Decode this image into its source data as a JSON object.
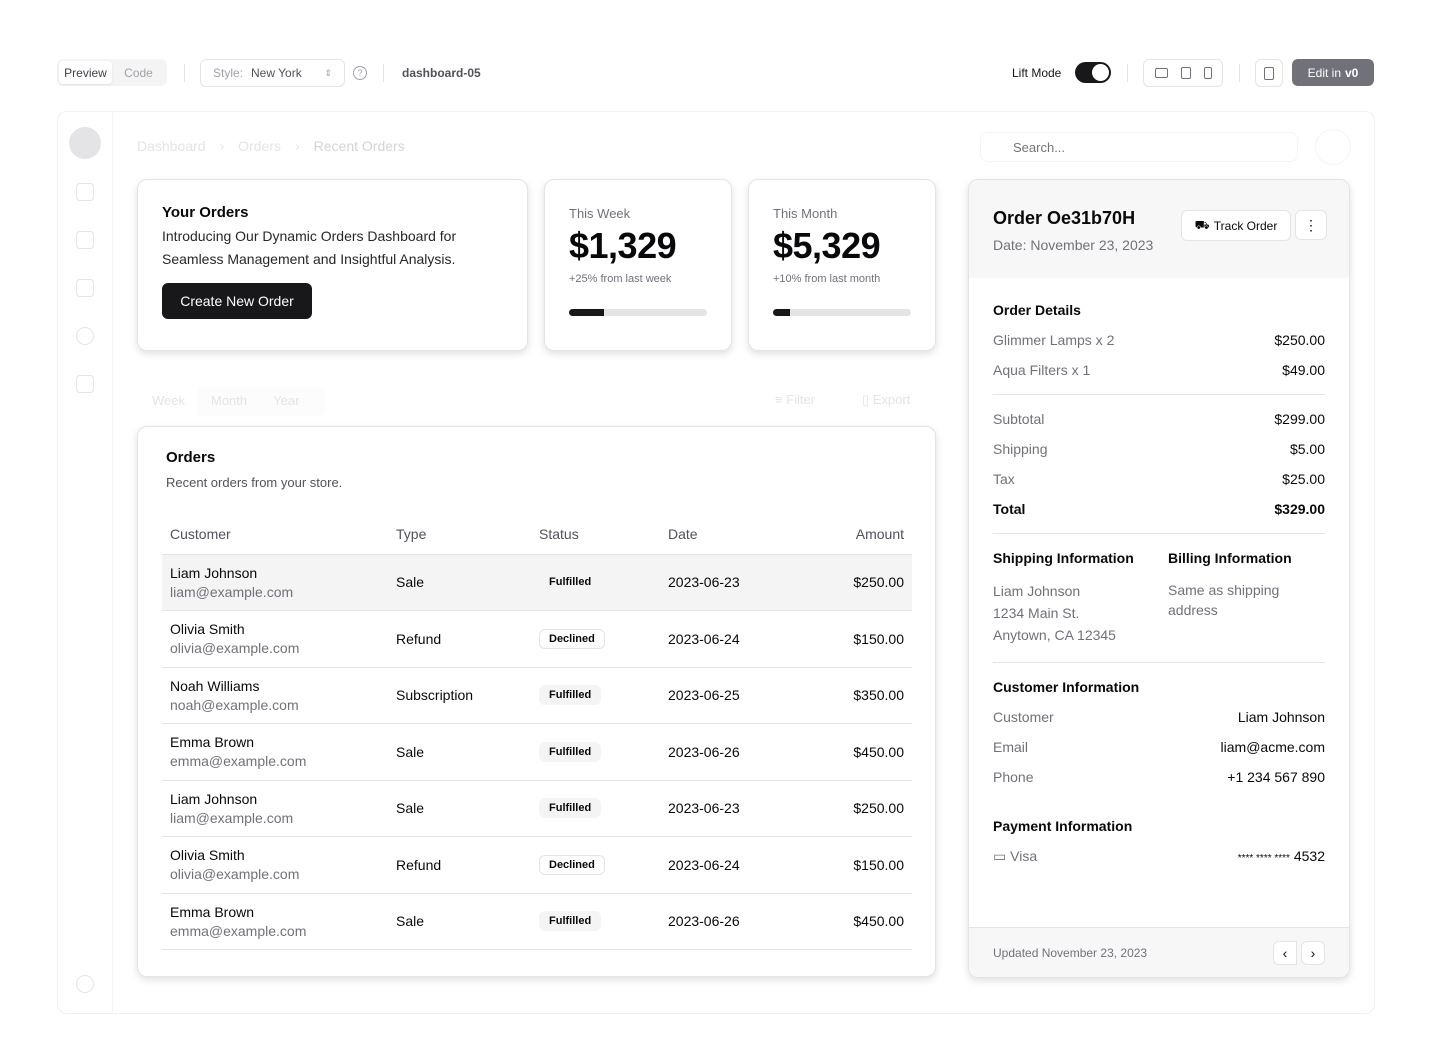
{
  "topbar": {
    "tabs": [
      "Preview",
      "Code"
    ],
    "style_label": "Style:",
    "style_value": "New York",
    "slug": "dashboard-05",
    "lift_mode": "Lift Mode",
    "lift_on": true,
    "edit_label": "Edit in",
    "edit_brand": "v0"
  },
  "breadcrumb": [
    "Dashboard",
    "Orders",
    "Recent Orders"
  ],
  "search": {
    "placeholder": "Search..."
  },
  "hero": {
    "title": "Your Orders",
    "desc": "Introducing Our Dynamic Orders Dashboard for Seamless Management and Insightful Analysis.",
    "button": "Create New Order"
  },
  "stats": [
    {
      "label": "This Week",
      "value": "$1,329",
      "change": "+25% from last week",
      "progress": 25
    },
    {
      "label": "This Month",
      "value": "$5,329",
      "change": "+10% from last month",
      "progress": 12
    }
  ],
  "filters": {
    "tabs": [
      "Week",
      "Month",
      "Year"
    ],
    "filter": "Filter",
    "export": "Export"
  },
  "orders": {
    "title": "Orders",
    "subtitle": "Recent orders from your store.",
    "columns": [
      "Customer",
      "Type",
      "Status",
      "Date",
      "Amount"
    ],
    "rows": [
      {
        "name": "Liam Johnson",
        "email": "liam@example.com",
        "type": "Sale",
        "status": "Fulfilled",
        "date": "2023-06-23",
        "amount": "$250.00"
      },
      {
        "name": "Olivia Smith",
        "email": "olivia@example.com",
        "type": "Refund",
        "status": "Declined",
        "date": "2023-06-24",
        "amount": "$150.00"
      },
      {
        "name": "Noah Williams",
        "email": "noah@example.com",
        "type": "Subscription",
        "status": "Fulfilled",
        "date": "2023-06-25",
        "amount": "$350.00"
      },
      {
        "name": "Emma Brown",
        "email": "emma@example.com",
        "type": "Sale",
        "status": "Fulfilled",
        "date": "2023-06-26",
        "amount": "$450.00"
      },
      {
        "name": "Liam Johnson",
        "email": "liam@example.com",
        "type": "Sale",
        "status": "Fulfilled",
        "date": "2023-06-23",
        "amount": "$250.00"
      },
      {
        "name": "Olivia Smith",
        "email": "olivia@example.com",
        "type": "Refund",
        "status": "Declined",
        "date": "2023-06-24",
        "amount": "$150.00"
      },
      {
        "name": "Emma Brown",
        "email": "emma@example.com",
        "type": "Sale",
        "status": "Fulfilled",
        "date": "2023-06-26",
        "amount": "$450.00"
      }
    ]
  },
  "detail": {
    "title": "Order Oe31b70H",
    "date": "Date: November 23, 2023",
    "track": "Track Order",
    "details_title": "Order Details",
    "items": [
      {
        "k": "Glimmer Lamps x 2",
        "v": "$250.00"
      },
      {
        "k": "Aqua Filters x 1",
        "v": "$49.00"
      }
    ],
    "totals": [
      {
        "k": "Subtotal",
        "v": "$299.00"
      },
      {
        "k": "Shipping",
        "v": "$5.00"
      },
      {
        "k": "Tax",
        "v": "$25.00"
      }
    ],
    "total": {
      "k": "Total",
      "v": "$329.00"
    },
    "shipping_title": "Shipping Information",
    "shipping": [
      "Liam Johnson",
      "1234 Main St.",
      "Anytown, CA 12345"
    ],
    "billing_title": "Billing Information",
    "billing": "Same as shipping address",
    "customer_title": "Customer Information",
    "customer": [
      {
        "k": "Customer",
        "v": "Liam Johnson"
      },
      {
        "k": "Email",
        "v": "liam@acme.com"
      },
      {
        "k": "Phone",
        "v": "+1 234 567 890"
      }
    ],
    "payment_title": "Payment Information",
    "card_type": "Visa",
    "card_stars": "**** **** ****",
    "card_last": "4532",
    "updated": "Updated November 23, 2023"
  }
}
